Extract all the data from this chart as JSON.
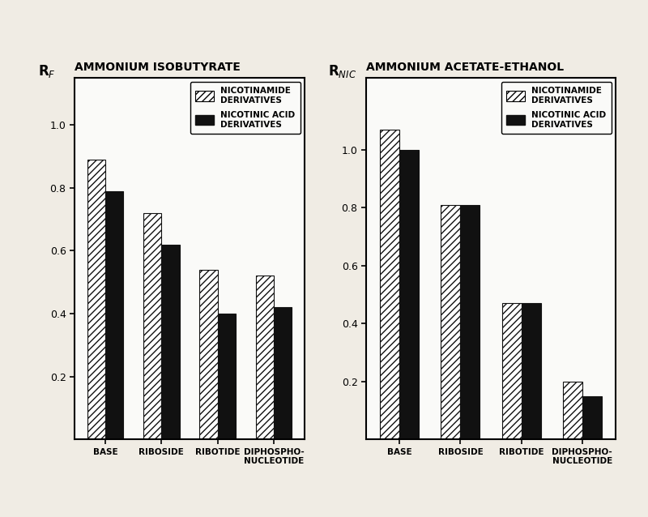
{
  "left_chart": {
    "title": "AMMONIUM ISOBUTYRATE",
    "ylabel": "R$_F$",
    "categories": [
      "BASE",
      "RIBOSIDE",
      "RIBOTIDE",
      "DIPHOSPHO-\nNUCLEOTIDE"
    ],
    "nicotinamide": [
      0.89,
      0.72,
      0.54,
      0.52
    ],
    "nicotinic_acid": [
      0.79,
      0.62,
      0.4,
      0.42
    ],
    "ylim": [
      0,
      1.15
    ],
    "yticks": [
      0.2,
      0.4,
      0.6,
      0.8,
      1.0
    ],
    "ytick_labels": [
      "0.2",
      "0.4",
      "0.6",
      "0.8",
      "1.0"
    ]
  },
  "right_chart": {
    "title": "AMMONIUM ACETATE-ETHANOL",
    "ylabel": "R$_{NIC}$",
    "categories": [
      "BASE",
      "RIBOSIDE",
      "RIBOTIDE",
      "DIPHOSPHO-\nNUCLEOTIDE"
    ],
    "nicotinamide": [
      1.07,
      0.81,
      0.47,
      0.2
    ],
    "nicotinic_acid": [
      1.0,
      0.81,
      0.47,
      0.15
    ],
    "ylim": [
      0,
      1.25
    ],
    "yticks": [
      0.2,
      0.4,
      0.6,
      0.8,
      1.0
    ],
    "ytick_labels": [
      "0.2",
      "0.4",
      "0.6",
      "0.8",
      "1.0"
    ]
  },
  "hatch_pattern": "////",
  "solid_color": "#111111",
  "hatch_facecolor": "white",
  "hatch_edgecolor": "#111111",
  "background_color": "#f0ece4",
  "plot_bg_color": "#fafaf8",
  "bar_width": 0.32,
  "legend_nicotinamide": "NICOTINAMIDE\nDERIVATIVES",
  "legend_nicotinic": "NICOTINIC ACID\nDERIVATIVES",
  "fontsize_title": 10,
  "fontsize_labels": 7.5,
  "fontsize_ticks": 9,
  "fontsize_legend": 7.5,
  "fontsize_ylabel": 12
}
